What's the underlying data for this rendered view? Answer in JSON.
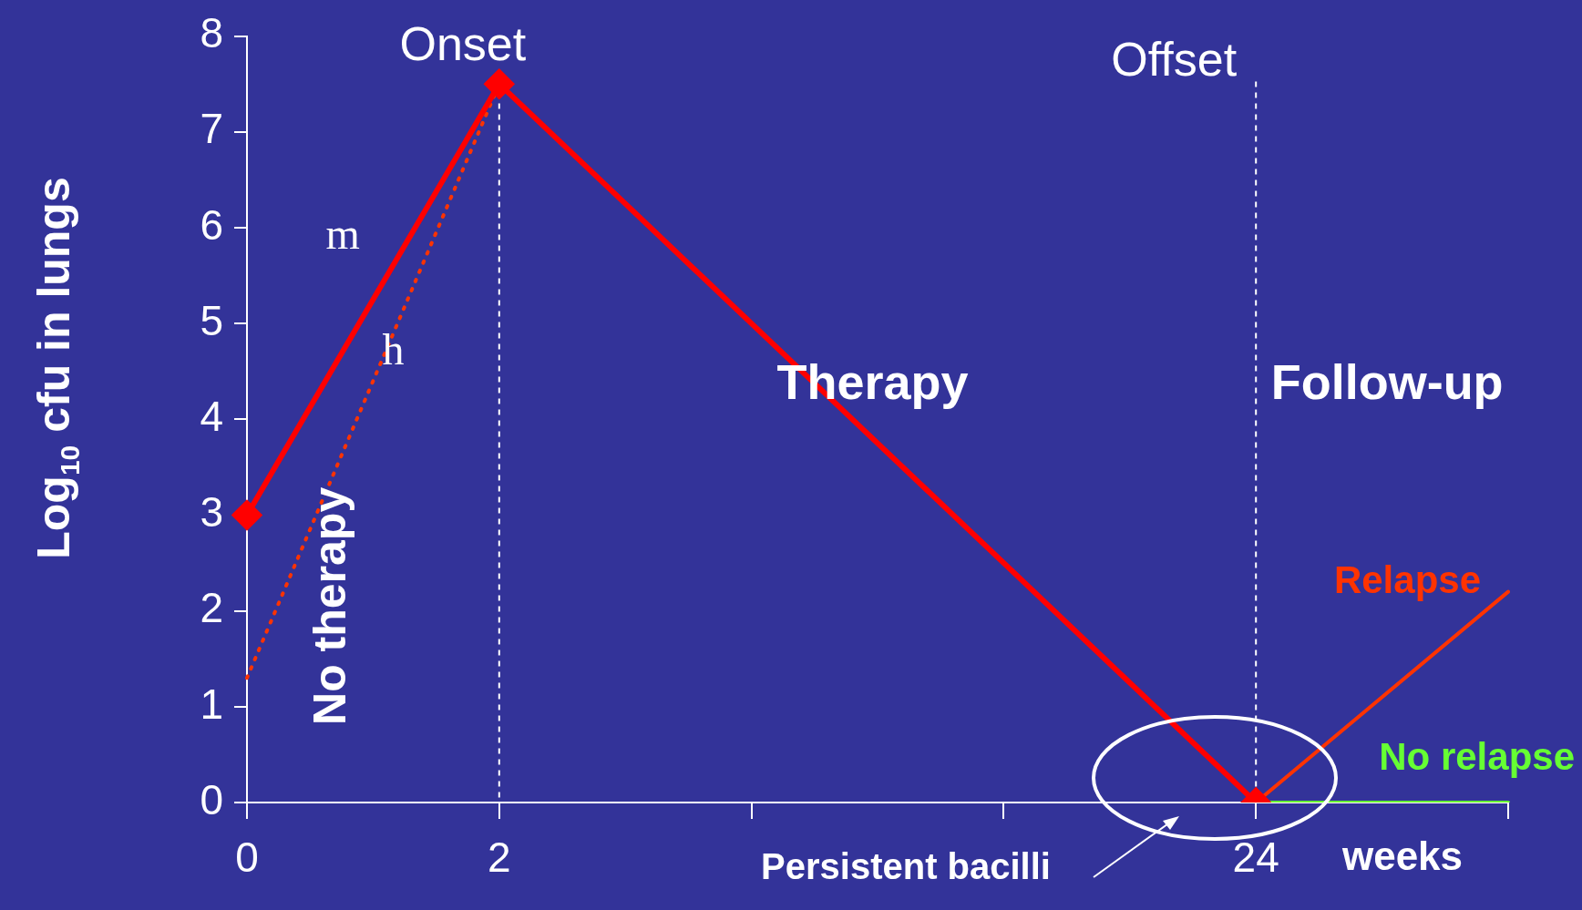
{
  "chart_data": {
    "type": "line",
    "ylabel": "Log$_{10}$ cfu in lungs",
    "categories": [
      "0",
      "2",
      null,
      null,
      "24",
      null
    ],
    "ylim": [
      0,
      8
    ],
    "yticks": [
      0,
      1,
      2,
      3,
      4,
      5,
      6,
      7,
      8
    ],
    "grid": false,
    "legend": false,
    "marker": "none",
    "line_style": "solid",
    "series": [
      {
        "color": "#ff0000",
        "values": [
          3,
          7.5,
          null,
          null,
          0,
          null
        ],
        "marker": "diamond"
      },
      {
        "color": "#ff3300",
        "values": [
          1.3,
          7.5,
          null,
          null,
          null,
          null
        ],
        "line_style": "dotted"
      },
      {
        "name": "Relapse",
        "color": "#ff3300",
        "values": [
          null,
          null,
          null,
          null,
          0,
          2.2
        ]
      },
      {
        "name": "No relapse",
        "color": "#66ff33",
        "values": [
          null,
          null,
          null,
          null,
          0,
          0
        ]
      }
    ],
    "ref_lines": [
      {
        "axis": "x",
        "value": "2",
        "label": "Onset",
        "color": "#ffffff",
        "line_style": "dashed"
      },
      {
        "axis": "x",
        "value": "24",
        "label": "Offset",
        "color": "#ffffff",
        "line_style": "dashed"
      }
    ],
    "annotations": [
      "Therapy",
      "Follow-up",
      "No therapy",
      "m",
      "h",
      "Persistent bacilli",
      "weeks"
    ]
  }
}
